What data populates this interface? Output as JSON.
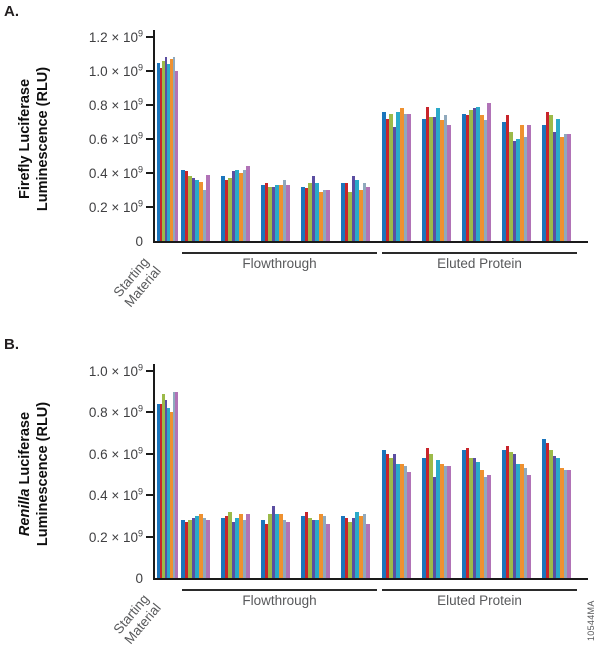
{
  "figure": {
    "watermark": "10544MA"
  },
  "series_colors": [
    "#1B75BC",
    "#C8242B",
    "#9CBA49",
    "#5B4EA1",
    "#2AA9C9",
    "#EE9130",
    "#8FA9BD",
    "#B173B7"
  ],
  "chart_data": [
    {
      "type": "bar",
      "panel_label": "A.",
      "ylabel_line1": "Firefly Luciferase",
      "ylabel_line2": "Luminescence (RLU)",
      "ylabel_line1_italic": "",
      "y_unit": "RLU",
      "value_scale": "x10^9",
      "ymax_display": 1.2,
      "ylim": [
        0,
        1200000000
      ],
      "grid": false,
      "legend": "none",
      "yticks": [
        {
          "v": 1.2,
          "label": "1.2 × 10^9"
        },
        {
          "v": 1.0,
          "label": "1.0 × 10^9"
        },
        {
          "v": 0.8,
          "label": "0.8 × 10^9"
        },
        {
          "v": 0.6,
          "label": "0.6 × 10^9"
        },
        {
          "v": 0.4,
          "label": "0.4 × 10^9"
        },
        {
          "v": 0.2,
          "label": "0.2 × 10^9"
        },
        {
          "v": 0,
          "label": "0"
        }
      ],
      "groups": [
        {
          "label": "Starting Material",
          "clusters": [
            [
              1.05,
              1.02,
              1.06,
              1.08,
              1.04,
              1.07,
              1.08,
              1.0
            ]
          ]
        },
        {
          "label": "Flowthrough",
          "clusters": [
            [
              0.42,
              0.41,
              0.38,
              0.37,
              0.36,
              0.35,
              0.3,
              0.39
            ],
            [
              0.38,
              0.36,
              0.37,
              0.41,
              0.42,
              0.4,
              0.42,
              0.44
            ],
            [
              0.33,
              0.34,
              0.32,
              0.32,
              0.33,
              0.33,
              0.36,
              0.33
            ],
            [
              0.32,
              0.31,
              0.34,
              0.38,
              0.34,
              0.29,
              0.3,
              0.3
            ],
            [
              0.34,
              0.34,
              0.29,
              0.38,
              0.36,
              0.3,
              0.34,
              0.32
            ]
          ]
        },
        {
          "label": "Eluted Protein",
          "clusters": [
            [
              0.76,
              0.72,
              0.75,
              0.67,
              0.76,
              0.78,
              0.75,
              0.75
            ],
            [
              0.72,
              0.79,
              0.73,
              0.73,
              0.78,
              0.71,
              0.74,
              0.68
            ],
            [
              0.75,
              0.74,
              0.77,
              0.78,
              0.79,
              0.74,
              0.71,
              0.81
            ],
            [
              0.7,
              0.74,
              0.64,
              0.59,
              0.6,
              0.68,
              0.61,
              0.68
            ],
            [
              0.68,
              0.76,
              0.74,
              0.64,
              0.72,
              0.61,
              0.63,
              0.63
            ]
          ]
        }
      ]
    },
    {
      "type": "bar",
      "panel_label": "B.",
      "ylabel_line1": "Renilla Luciferase",
      "ylabel_line2": "Luminescence (RLU)",
      "ylabel_line1_italic": "Renilla",
      "y_unit": "RLU",
      "value_scale": "x10^9",
      "ymax_display": 1.0,
      "ylim": [
        0,
        1000000000
      ],
      "grid": false,
      "legend": "none",
      "yticks": [
        {
          "v": 1.0,
          "label": "1.0 × 10^9"
        },
        {
          "v": 0.8,
          "label": "0.8 × 10^9"
        },
        {
          "v": 0.6,
          "label": "0.6 × 10^9"
        },
        {
          "v": 0.4,
          "label": "0.4 × 10^9"
        },
        {
          "v": 0.2,
          "label": "0.2 × 10^9"
        },
        {
          "v": 0,
          "label": "0"
        }
      ],
      "groups": [
        {
          "label": "Starting Material",
          "clusters": [
            [
              0.84,
              0.84,
              0.89,
              0.86,
              0.82,
              0.8,
              0.9,
              0.9
            ]
          ]
        },
        {
          "label": "Flowthrough",
          "clusters": [
            [
              0.28,
              0.27,
              0.28,
              0.29,
              0.3,
              0.31,
              0.29,
              0.28
            ],
            [
              0.29,
              0.3,
              0.32,
              0.27,
              0.29,
              0.31,
              0.28,
              0.31
            ],
            [
              0.28,
              0.26,
              0.31,
              0.35,
              0.31,
              0.31,
              0.28,
              0.27
            ],
            [
              0.3,
              0.32,
              0.29,
              0.28,
              0.28,
              0.31,
              0.3,
              0.26
            ],
            [
              0.3,
              0.29,
              0.27,
              0.29,
              0.32,
              0.3,
              0.31,
              0.26
            ]
          ]
        },
        {
          "label": "Eluted Protein",
          "clusters": [
            [
              0.62,
              0.6,
              0.58,
              0.6,
              0.55,
              0.55,
              0.54,
              0.51
            ],
            [
              0.58,
              0.63,
              0.6,
              0.49,
              0.57,
              0.55,
              0.54,
              0.54
            ],
            [
              0.62,
              0.63,
              0.58,
              0.58,
              0.56,
              0.52,
              0.49,
              0.5
            ],
            [
              0.62,
              0.64,
              0.61,
              0.6,
              0.55,
              0.55,
              0.53,
              0.5
            ],
            [
              0.67,
              0.65,
              0.62,
              0.59,
              0.58,
              0.53,
              0.52,
              0.52
            ]
          ]
        }
      ]
    }
  ]
}
